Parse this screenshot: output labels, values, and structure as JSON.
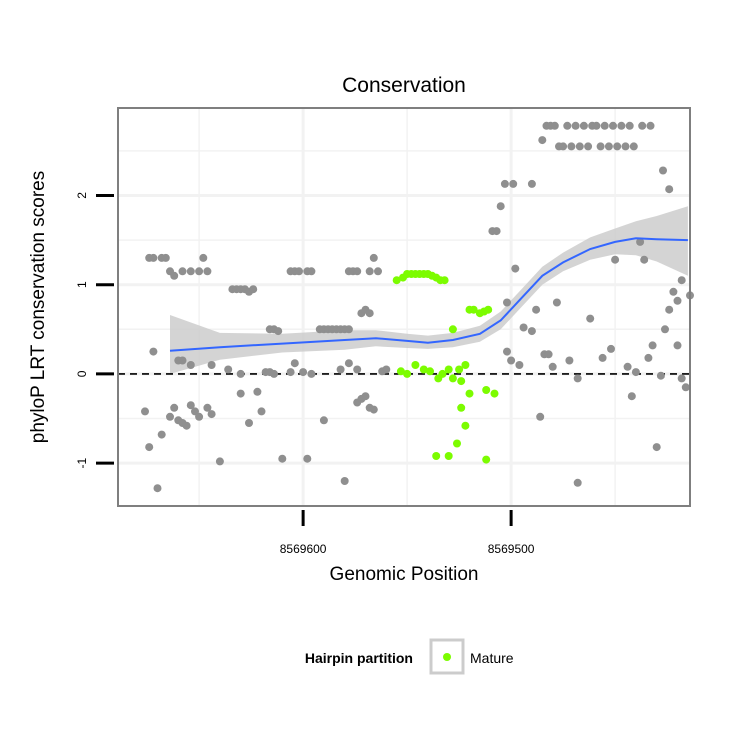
{
  "chart_data": {
    "type": "scatter",
    "title": "Conservation",
    "xlabel": "Genomic Position",
    "ylabel": "phyloP LRT conservation scores",
    "x_reversed": true,
    "xlim": [
      8569689,
      8569414
    ],
    "ylim": [
      -1.48,
      2.98
    ],
    "x_ticks": [
      8569600,
      8569500
    ],
    "x_tick_labels": [
      "8569600",
      "8569500"
    ],
    "y_ticks": [
      -1,
      0,
      1,
      2
    ],
    "y_tick_labels": [
      "-1",
      "0",
      "1",
      "2"
    ],
    "grid": true,
    "reference_line": {
      "y": 0,
      "style": "dashed"
    },
    "legend": {
      "title": "Hairpin partition",
      "position": "bottom",
      "entries": [
        "Mature"
      ]
    },
    "colors": {
      "other": "#8f8f8f",
      "mature": "#7cfc00",
      "smooth": "#3366ff",
      "ribbon": "#cccccc",
      "panel_border": "#7f7f7f",
      "grid": "#f2f2f2"
    },
    "series": [
      {
        "group": "other",
        "color": "#8f8f8f",
        "points": [
          [
            8569674,
            1.3
          ],
          [
            8569672,
            1.3
          ],
          [
            8569668,
            1.3
          ],
          [
            8569666,
            1.3
          ],
          [
            8569664,
            1.15
          ],
          [
            8569662,
            1.1
          ],
          [
            8569658,
            1.15
          ],
          [
            8569654,
            1.15
          ],
          [
            8569650,
            1.15
          ],
          [
            8569648,
            1.3
          ],
          [
            8569646,
            1.15
          ],
          [
            8569634,
            0.95
          ],
          [
            8569632,
            0.95
          ],
          [
            8569630,
            0.95
          ],
          [
            8569628,
            0.95
          ],
          [
            8569626,
            0.92
          ],
          [
            8569624,
            0.95
          ],
          [
            8569616,
            0.5
          ],
          [
            8569614,
            0.5
          ],
          [
            8569612,
            0.48
          ],
          [
            8569606,
            1.15
          ],
          [
            8569604,
            1.15
          ],
          [
            8569602,
            1.15
          ],
          [
            8569598,
            1.15
          ],
          [
            8569596,
            1.15
          ],
          [
            8569592,
            0.5
          ],
          [
            8569590,
            0.5
          ],
          [
            8569588,
            0.5
          ],
          [
            8569586,
            0.5
          ],
          [
            8569584,
            0.5
          ],
          [
            8569582,
            0.5
          ],
          [
            8569580,
            0.5
          ],
          [
            8569578,
            0.5
          ],
          [
            8569578,
            1.15
          ],
          [
            8569576,
            1.15
          ],
          [
            8569574,
            1.15
          ],
          [
            8569568,
            1.15
          ],
          [
            8569572,
            0.68
          ],
          [
            8569570,
            0.72
          ],
          [
            8569568,
            0.68
          ],
          [
            8569566,
            1.3
          ],
          [
            8569564,
            1.15
          ],
          [
            8569672,
            0.25
          ],
          [
            8569660,
            0.15
          ],
          [
            8569658,
            0.15
          ],
          [
            8569654,
            0.1
          ],
          [
            8569644,
            0.1
          ],
          [
            8569636,
            0.05
          ],
          [
            8569630,
            0.0
          ],
          [
            8569618,
            0.02
          ],
          [
            8569616,
            0.02
          ],
          [
            8569614,
            0.0
          ],
          [
            8569606,
            0.02
          ],
          [
            8569604,
            0.12
          ],
          [
            8569600,
            0.02
          ],
          [
            8569596,
            0.0
          ],
          [
            8569582,
            0.05
          ],
          [
            8569578,
            0.12
          ],
          [
            8569574,
            0.05
          ],
          [
            8569562,
            0.03
          ],
          [
            8569560,
            0.05
          ],
          [
            8569676,
            -0.42
          ],
          [
            8569674,
            -0.82
          ],
          [
            8569670,
            -1.28
          ],
          [
            8569668,
            -0.68
          ],
          [
            8569664,
            -0.48
          ],
          [
            8569662,
            -0.38
          ],
          [
            8569660,
            -0.52
          ],
          [
            8569658,
            -0.55
          ],
          [
            8569656,
            -0.58
          ],
          [
            8569654,
            -0.35
          ],
          [
            8569652,
            -0.42
          ],
          [
            8569650,
            -0.48
          ],
          [
            8569646,
            -0.38
          ],
          [
            8569644,
            -0.45
          ],
          [
            8569640,
            -0.98
          ],
          [
            8569630,
            -0.22
          ],
          [
            8569626,
            -0.55
          ],
          [
            8569622,
            -0.2
          ],
          [
            8569620,
            -0.42
          ],
          [
            8569610,
            -0.95
          ],
          [
            8569598,
            -0.95
          ],
          [
            8569590,
            -0.52
          ],
          [
            8569580,
            -1.2
          ],
          [
            8569574,
            -0.32
          ],
          [
            8569572,
            -0.28
          ],
          [
            8569570,
            -0.25
          ],
          [
            8569568,
            -0.38
          ],
          [
            8569566,
            -0.4
          ],
          [
            8569509,
            1.6
          ],
          [
            8569507,
            1.6
          ],
          [
            8569505,
            1.88
          ],
          [
            8569503,
            2.13
          ],
          [
            8569499,
            2.13
          ],
          [
            8569490,
            2.13
          ],
          [
            8569502,
            0.8
          ],
          [
            8569498,
            1.18
          ],
          [
            8569494,
            0.52
          ],
          [
            8569490,
            0.48
          ],
          [
            8569488,
            0.72
          ],
          [
            8569484,
            0.22
          ],
          [
            8569482,
            0.22
          ],
          [
            8569480,
            0.08
          ],
          [
            8569478,
            0.8
          ],
          [
            8569500,
            0.15
          ],
          [
            8569496,
            0.1
          ],
          [
            8569502,
            0.25
          ],
          [
            8569486,
            -0.48
          ],
          [
            8569472,
            0.15
          ],
          [
            8569468,
            -0.05
          ],
          [
            8569462,
            0.62
          ],
          [
            8569456,
            0.18
          ],
          [
            8569452,
            0.28
          ],
          [
            8569450,
            1.28
          ],
          [
            8569444,
            0.08
          ],
          [
            8569440,
            0.02
          ],
          [
            8569430,
            -0.82
          ],
          [
            8569426,
            0.5
          ],
          [
            8569424,
            0.72
          ],
          [
            8569422,
            0.92
          ],
          [
            8569420,
            0.82
          ],
          [
            8569418,
            1.05
          ],
          [
            8569434,
            0.18
          ],
          [
            8569436,
            1.28
          ],
          [
            8569438,
            1.48
          ],
          [
            8569432,
            0.32
          ],
          [
            8569428,
            -0.02
          ],
          [
            8569420,
            0.32
          ],
          [
            8569414,
            0.88
          ],
          [
            8569416,
            -0.15
          ],
          [
            8569418,
            -0.05
          ],
          [
            8569468,
            -1.22
          ],
          [
            8569442,
            -0.25
          ],
          [
            8569485,
            2.62
          ],
          [
            8569483,
            2.78
          ],
          [
            8569481,
            2.78
          ],
          [
            8569479,
            2.78
          ],
          [
            8569477,
            2.55
          ],
          [
            8569475,
            2.55
          ],
          [
            8569473,
            2.78
          ],
          [
            8569471,
            2.55
          ],
          [
            8569469,
            2.78
          ],
          [
            8569467,
            2.55
          ],
          [
            8569465,
            2.78
          ],
          [
            8569463,
            2.55
          ],
          [
            8569461,
            2.78
          ],
          [
            8569459,
            2.78
          ],
          [
            8569457,
            2.55
          ],
          [
            8569455,
            2.78
          ],
          [
            8569453,
            2.55
          ],
          [
            8569451,
            2.78
          ],
          [
            8569449,
            2.55
          ],
          [
            8569447,
            2.78
          ],
          [
            8569445,
            2.55
          ],
          [
            8569443,
            2.78
          ],
          [
            8569441,
            2.55
          ],
          [
            8569437,
            2.78
          ],
          [
            8569433,
            2.78
          ],
          [
            8569427,
            2.28
          ],
          [
            8569424,
            2.07
          ]
        ]
      },
      {
        "group": "mature",
        "name": "Mature",
        "color": "#7cfc00",
        "points": [
          [
            8569555,
            1.05
          ],
          [
            8569552,
            1.08
          ],
          [
            8569550,
            1.12
          ],
          [
            8569548,
            1.12
          ],
          [
            8569546,
            1.12
          ],
          [
            8569544,
            1.12
          ],
          [
            8569542,
            1.12
          ],
          [
            8569540,
            1.12
          ],
          [
            8569538,
            1.1
          ],
          [
            8569536,
            1.08
          ],
          [
            8569534,
            1.05
          ],
          [
            8569532,
            1.05
          ],
          [
            8569553,
            0.03
          ],
          [
            8569550,
            0.0
          ],
          [
            8569546,
            0.1
          ],
          [
            8569542,
            0.05
          ],
          [
            8569539,
            0.03
          ],
          [
            8569535,
            -0.05
          ],
          [
            8569533,
            0.0
          ],
          [
            8569530,
            0.05
          ],
          [
            8569528,
            -0.05
          ],
          [
            8569525,
            0.05
          ],
          [
            8569522,
            0.1
          ],
          [
            8569524,
            -0.08
          ],
          [
            8569528,
            0.5
          ],
          [
            8569520,
            0.72
          ],
          [
            8569518,
            0.72
          ],
          [
            8569515,
            0.68
          ],
          [
            8569513,
            0.7
          ],
          [
            8569511,
            0.72
          ],
          [
            8569520,
            -0.22
          ],
          [
            8569512,
            -0.18
          ],
          [
            8569508,
            -0.22
          ],
          [
            8569524,
            -0.38
          ],
          [
            8569522,
            -0.58
          ],
          [
            8569526,
            -0.78
          ],
          [
            8569530,
            -0.92
          ],
          [
            8569536,
            -0.92
          ],
          [
            8569512,
            -0.96
          ]
        ]
      }
    ],
    "smooth_fit": {
      "method": "loess",
      "points": [
        [
          8569664,
          0.26
        ],
        [
          8569640,
          0.3
        ],
        [
          8569610,
          0.34
        ],
        [
          8569580,
          0.38
        ],
        [
          8569565,
          0.4
        ],
        [
          8569550,
          0.37
        ],
        [
          8569540,
          0.35
        ],
        [
          8569528,
          0.38
        ],
        [
          8569515,
          0.45
        ],
        [
          8569505,
          0.6
        ],
        [
          8569495,
          0.85
        ],
        [
          8569485,
          1.1
        ],
        [
          8569475,
          1.25
        ],
        [
          8569462,
          1.4
        ],
        [
          8569450,
          1.48
        ],
        [
          8569440,
          1.52
        ],
        [
          8569430,
          1.51
        ],
        [
          8569415,
          1.5
        ]
      ],
      "band_lower": [
        [
          8569664,
          0.0
        ],
        [
          8569640,
          0.16
        ],
        [
          8569610,
          0.24
        ],
        [
          8569580,
          0.27
        ],
        [
          8569565,
          0.31
        ],
        [
          8569550,
          0.29
        ],
        [
          8569540,
          0.28
        ],
        [
          8569528,
          0.3
        ],
        [
          8569515,
          0.36
        ],
        [
          8569505,
          0.5
        ],
        [
          8569495,
          0.75
        ],
        [
          8569485,
          1.0
        ],
        [
          8569475,
          1.15
        ],
        [
          8569462,
          1.28
        ],
        [
          8569450,
          1.34
        ],
        [
          8569440,
          1.33
        ],
        [
          8569430,
          1.26
        ],
        [
          8569415,
          1.1
        ]
      ],
      "band_upper": [
        [
          8569664,
          0.66
        ],
        [
          8569640,
          0.46
        ],
        [
          8569610,
          0.45
        ],
        [
          8569580,
          0.49
        ],
        [
          8569565,
          0.49
        ],
        [
          8569550,
          0.45
        ],
        [
          8569540,
          0.43
        ],
        [
          8569528,
          0.46
        ],
        [
          8569515,
          0.54
        ],
        [
          8569505,
          0.7
        ],
        [
          8569495,
          0.95
        ],
        [
          8569485,
          1.2
        ],
        [
          8569475,
          1.36
        ],
        [
          8569462,
          1.53
        ],
        [
          8569450,
          1.63
        ],
        [
          8569440,
          1.71
        ],
        [
          8569430,
          1.77
        ],
        [
          8569415,
          1.88
        ]
      ]
    }
  }
}
